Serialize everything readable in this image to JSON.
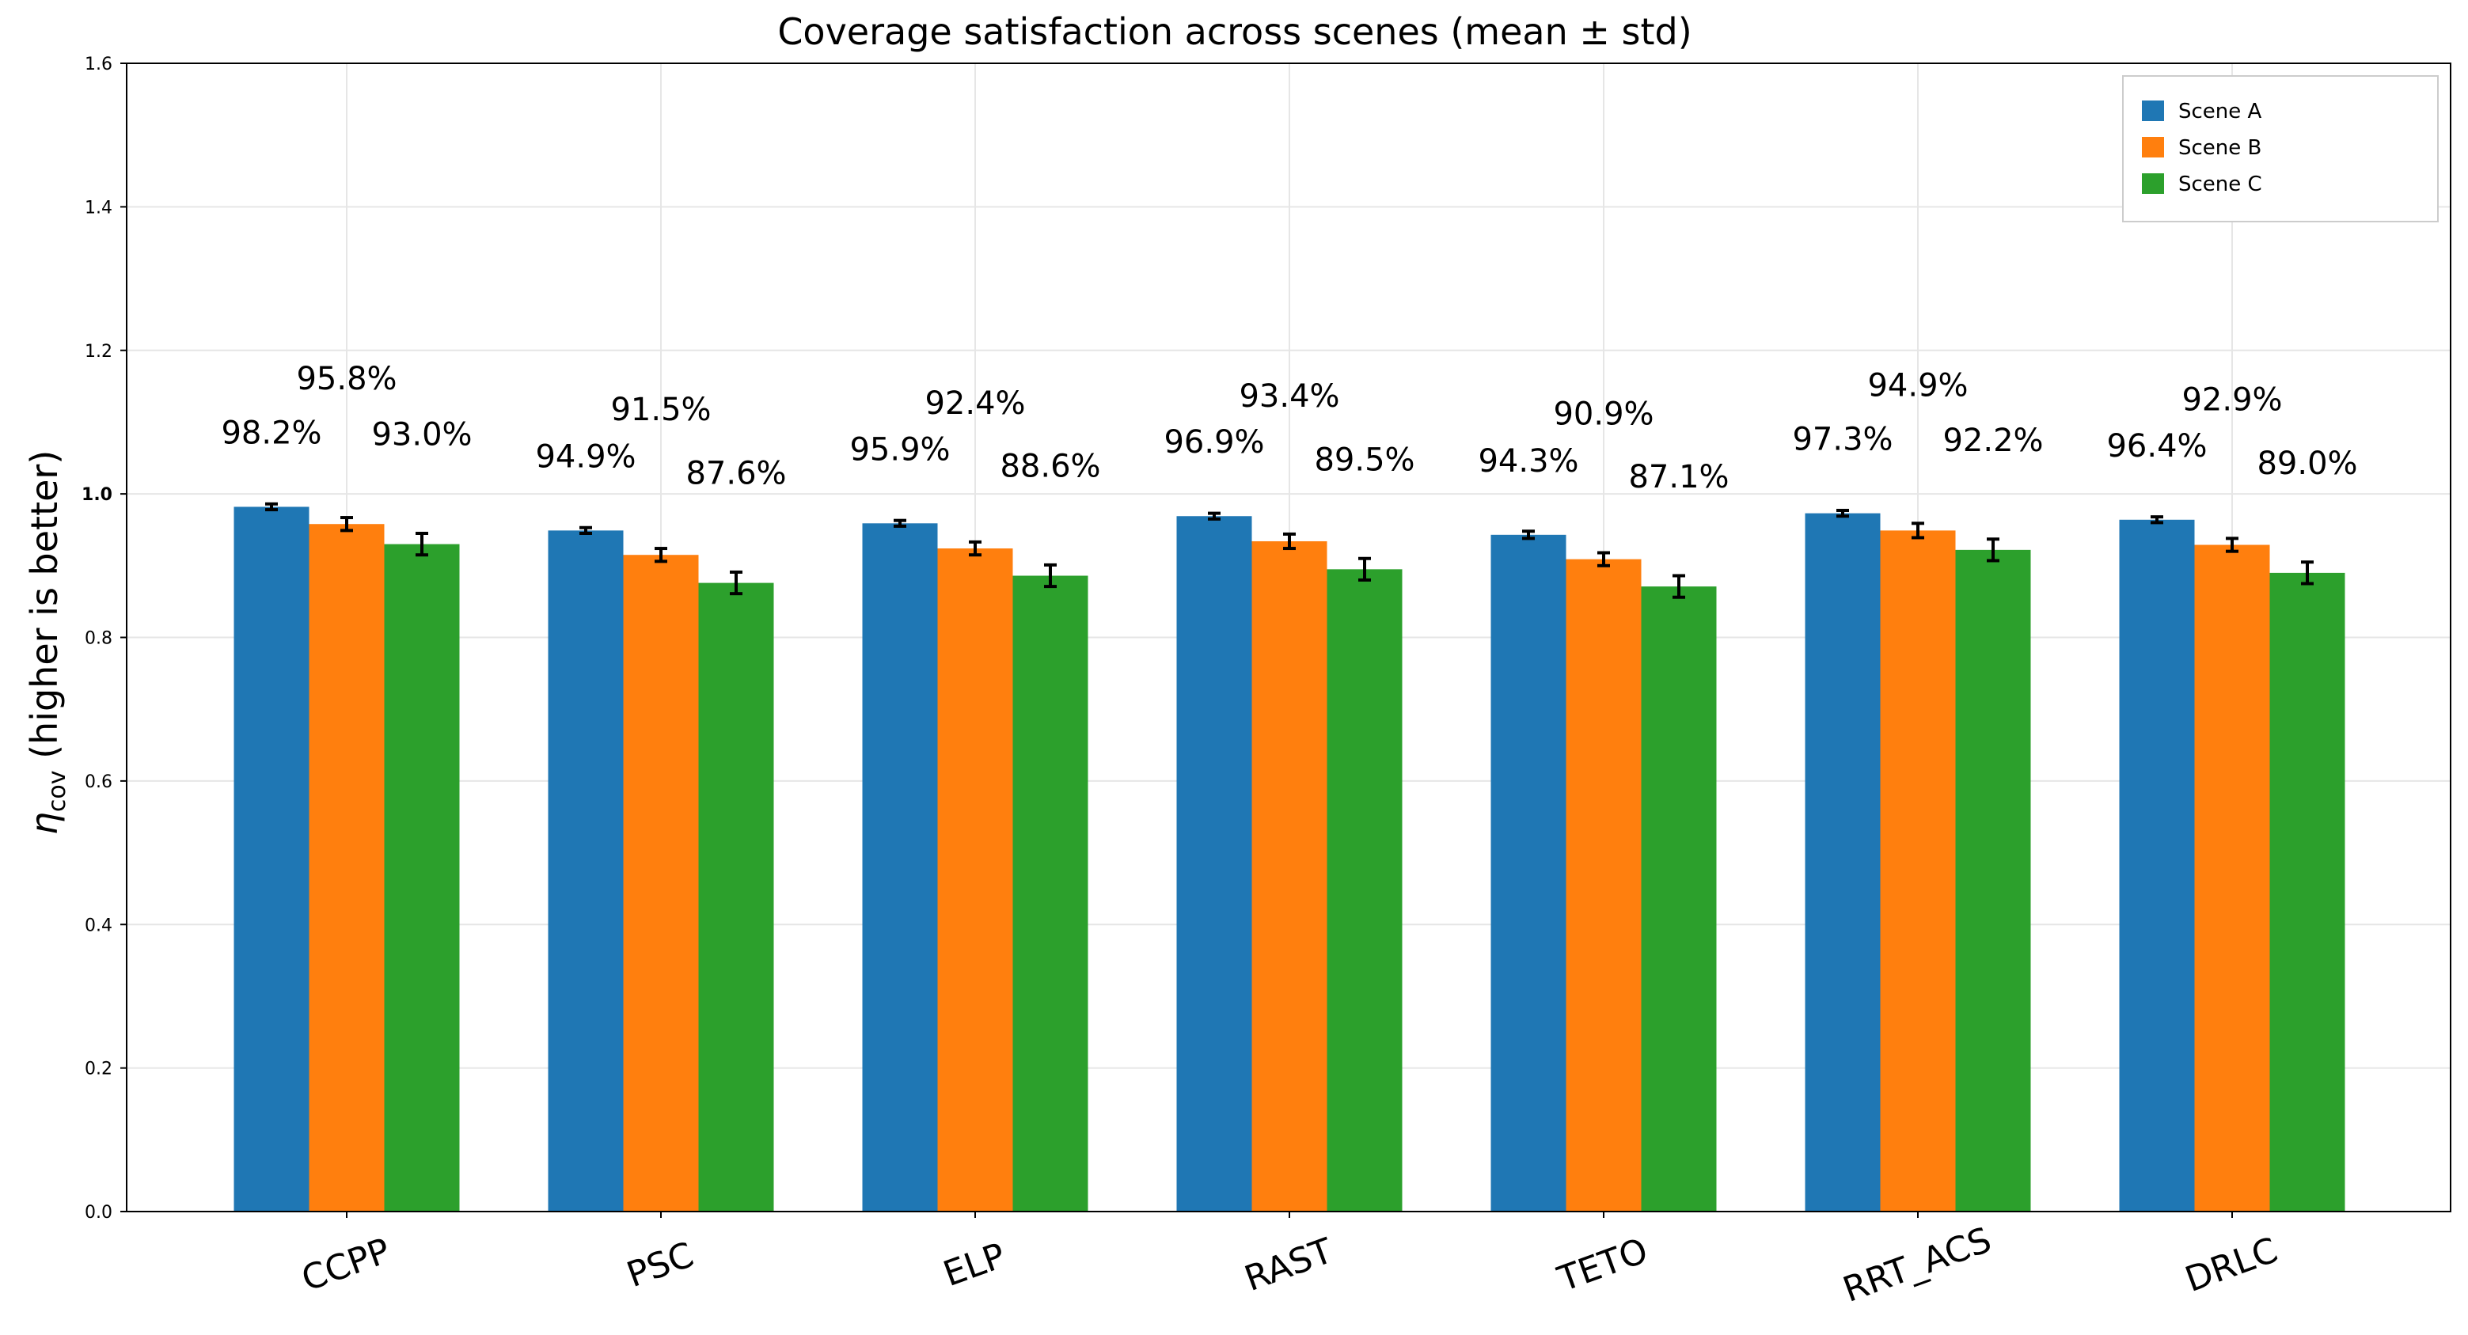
{
  "chart_data": {
    "type": "bar",
    "title": "Coverage satisfaction across scenes (mean ± std)",
    "xlabel": "",
    "ylabel": {
      "symbol": "η",
      "subscript": "cov",
      "suffix": " (higher is better)"
    },
    "ylim": [
      0.0,
      1.6
    ],
    "yticks": [
      0.0,
      0.2,
      0.4,
      0.6,
      0.8,
      1.0,
      1.2,
      1.4,
      1.6
    ],
    "ytick_labels": [
      "0.0",
      "0.2",
      "0.4",
      "0.6",
      "0.8",
      "1.0",
      "1.2",
      "1.4",
      "1.6"
    ],
    "highlight_tick": 1.0,
    "highlight_color": "#e41a1c",
    "grid": true,
    "legend_position": "top-right",
    "categories": [
      "CCPP",
      "PSC",
      "ELP",
      "RAST",
      "TETO",
      "RRT_ACS",
      "DRLC"
    ],
    "series": [
      {
        "name": "Scene A",
        "color": "#1f77b4",
        "values": [
          0.982,
          0.949,
          0.959,
          0.969,
          0.943,
          0.973,
          0.964
        ],
        "errors": [
          0.004,
          0.004,
          0.004,
          0.004,
          0.005,
          0.004,
          0.004
        ],
        "labels": [
          "98.2%",
          "94.9%",
          "95.9%",
          "96.9%",
          "94.3%",
          "97.3%",
          "96.4%"
        ]
      },
      {
        "name": "Scene B",
        "color": "#ff7f0e",
        "values": [
          0.958,
          0.915,
          0.924,
          0.934,
          0.909,
          0.949,
          0.929
        ],
        "errors": [
          0.009,
          0.009,
          0.009,
          0.01,
          0.009,
          0.01,
          0.009
        ],
        "labels": [
          "95.8%",
          "91.5%",
          "92.4%",
          "93.4%",
          "90.9%",
          "94.9%",
          "92.9%"
        ]
      },
      {
        "name": "Scene C",
        "color": "#2ca02c",
        "values": [
          0.93,
          0.876,
          0.886,
          0.895,
          0.871,
          0.922,
          0.89
        ],
        "errors": [
          0.015,
          0.015,
          0.015,
          0.015,
          0.015,
          0.015,
          0.015
        ],
        "labels": [
          "93.0%",
          "87.6%",
          "88.6%",
          "89.5%",
          "87.1%",
          "92.2%",
          "89.0%"
        ]
      }
    ]
  }
}
